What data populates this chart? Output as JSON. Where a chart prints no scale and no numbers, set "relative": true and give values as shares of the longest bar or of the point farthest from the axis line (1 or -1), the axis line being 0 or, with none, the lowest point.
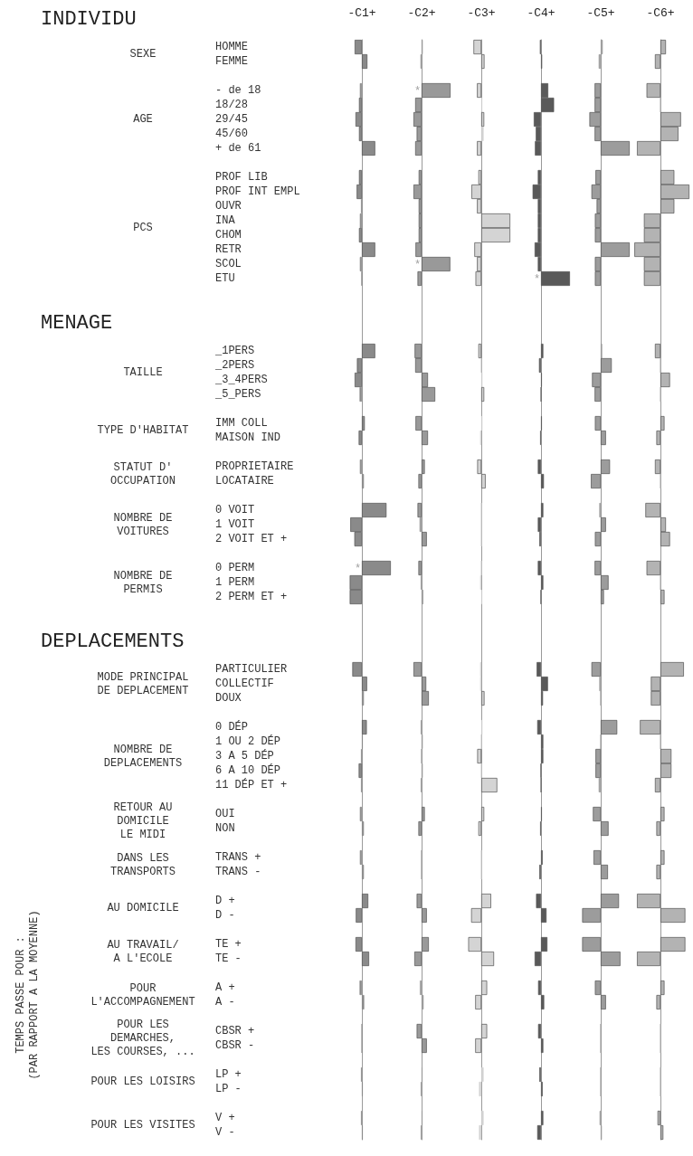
{
  "chart_data": [
    {
      "type": "bar",
      "orientation": "horizontal",
      "relative": true,
      "title": "-C1+",
      "color": "#8a8a8a",
      "tick_labels": "y",
      "annotations": [
        "INDIVIDU",
        "SEXE",
        "AGE",
        "PCS",
        "MENAGE",
        "TAILLE",
        "TYPE D'HABITAT",
        "STATUT D'\nOCCUPATION",
        "NOMBRE DE\nVOITURES",
        "NOMBRE DE\nPERMIS",
        "DEPLACEMENTS",
        "MODE PRINCIPAL\nDE DEPLACEMENT",
        "NOMBRE DE\nDEPLACEMENTS",
        "RETOUR AU\nDOMICILE\nLE MIDI",
        "DANS LES\nTRANSPORTS",
        "AU DOMICILE",
        "AU TRAVAIL/\nA L'ECOLE",
        "POUR\nL'ACCOMPAGNEMENT",
        "POUR LES\nDEMARCHES,\nLES COURSES, ...",
        "POUR LES LOISIRS",
        "POUR LES VISITES",
        "TEMPS PASSE POUR :\n(PAR RAPPORT A LA MOYENNE)",
        {
          "text": "*",
          "y": "0 PERM"
        }
      ],
      "categories": [
        "HOMME",
        "FEMME",
        null,
        "- de 18",
        "18/28",
        "29/45",
        "45/60",
        "+ de 61",
        null,
        "PROF LIB",
        "PROF INT EMPL",
        "OUVR",
        "INA",
        "CHOM",
        "RETR",
        "SCOL",
        "ETU",
        null,
        null,
        null,
        null,
        "_1PERS",
        "_2PERS",
        "_3_4PERS",
        "_5_PERS",
        null,
        "IMM COLL",
        "MAISON IND",
        null,
        "PROPRIETAIRE",
        "LOCATAIRE",
        null,
        "0 VOIT",
        "1 VOIT",
        "2 VOIT ET +",
        null,
        "0 PERM",
        "1 PERM",
        "2 PERM ET +",
        null,
        null,
        null,
        null,
        "PARTICULIER",
        "COLLECTIF",
        "DOUX",
        null,
        "0 DÉP",
        "1 OU 2 DÉP",
        "3 A 5 DÉP",
        "6 A 10 DÉP",
        "11 DÉP ET +",
        null,
        "OUI",
        "NON",
        null,
        "TRANS +",
        "TRANS -",
        null,
        "D +",
        "D -",
        null,
        "TE +",
        "TE -",
        null,
        "A +",
        "A -",
        null,
        "CBSR +",
        "CBSR -",
        null,
        "LP +",
        "LP -",
        null,
        "V +",
        "V -"
      ],
      "values": [
        -0.25,
        0.19,
        null,
        -0.07,
        -0.1,
        -0.22,
        -0.1,
        0.46,
        null,
        -0.1,
        -0.18,
        -0.03,
        -0.07,
        -0.1,
        0.46,
        -0.07,
        -0.01,
        null,
        null,
        null,
        null,
        0.46,
        -0.17,
        -0.25,
        -0.08,
        null,
        0.1,
        -0.11,
        null,
        -0.07,
        0.07,
        null,
        0.85,
        -0.4,
        -0.26,
        null,
        1,
        -0.42,
        -0.42,
        null,
        null,
        null,
        null,
        -0.33,
        0.18,
        0.07,
        null,
        0.17,
        0.03,
        -0.03,
        -0.11,
        -0.03,
        null,
        -0.07,
        0.07,
        null,
        -0.07,
        0.07,
        null,
        0.22,
        -0.21,
        null,
        -0.22,
        0.25,
        null,
        -0.08,
        0.08,
        null,
        0,
        0,
        null,
        -0.03,
        0.03,
        null,
        -0.03,
        0.03
      ]
    },
    {
      "type": "bar",
      "orientation": "horizontal",
      "relative": true,
      "title": "-C2+",
      "color": "#999999",
      "tick_labels": false,
      "annotations": [
        {
          "text": "*",
          "y": "- de 18"
        },
        {
          "text": "*",
          "y": "SCOL"
        }
      ],
      "categories": [
        "HOMME",
        "FEMME",
        null,
        "- de 18",
        "18/28",
        "29/45",
        "45/60",
        "+ de 61",
        null,
        "PROF LIB",
        "PROF INT EMPL",
        "OUVR",
        "INA",
        "CHOM",
        "RETR",
        "SCOL",
        "ETU",
        null,
        null,
        null,
        null,
        "_1PERS",
        "_2PERS",
        "_3_4PERS",
        "_5_PERS",
        null,
        "IMM COLL",
        "MAISON IND",
        null,
        "PROPRIETAIRE",
        "LOCATAIRE",
        null,
        "0 VOIT",
        "1 VOIT",
        "2 VOIT ET +",
        null,
        "0 PERM",
        "1 PERM",
        "2 PERM ET +",
        null,
        null,
        null,
        null,
        "PARTICULIER",
        "COLLECTIF",
        "DOUX",
        null,
        "0 DÉP",
        "1 OU 2 DÉP",
        "3 A 5 DÉP",
        "6 A 10 DÉP",
        "11 DÉP ET +",
        null,
        "OUI",
        "NON",
        null,
        "TRANS +",
        "TRANS -",
        null,
        "D +",
        "D -",
        null,
        "TE +",
        "TE -",
        null,
        "A +",
        "A -",
        null,
        "CBSR +",
        "CBSR -",
        null,
        "LP +",
        "LP -",
        null,
        "V +",
        "V -"
      ],
      "values": [
        0.04,
        -0.04,
        null,
        1,
        -0.22,
        -0.28,
        -0.17,
        -0.22,
        null,
        -0.1,
        -0.28,
        -0.1,
        -0.1,
        -0.1,
        -0.21,
        0.99,
        -0.14,
        null,
        null,
        null,
        null,
        -0.24,
        -0.22,
        0.22,
        0.47,
        null,
        -0.21,
        0.22,
        null,
        0.11,
        -0.11,
        null,
        -0.14,
        -0.07,
        0.18,
        null,
        -0.11,
        -0.03,
        0.06,
        null,
        null,
        null,
        null,
        -0.28,
        0.16,
        0.25,
        null,
        -0.03,
        0.04,
        0,
        0.04,
        -0.03,
        null,
        0.11,
        -0.11,
        null,
        0,
        0,
        null,
        -0.17,
        0.18,
        null,
        0.25,
        -0.25,
        null,
        -0.06,
        0.07,
        null,
        -0.17,
        0.18,
        null,
        0.03,
        -0.03,
        null,
        0.03,
        -0.03
      ]
    },
    {
      "type": "bar",
      "orientation": "horizontal",
      "relative": true,
      "title": "-C3+",
      "color": "#d4d4d4",
      "tick_labels": false,
      "categories": [
        "HOMME",
        "FEMME",
        null,
        "- de 18",
        "18/28",
        "29/45",
        "45/60",
        "+ de 61",
        null,
        "PROF LIB",
        "PROF INT EMPL",
        "OUVR",
        "INA",
        "CHOM",
        "RETR",
        "SCOL",
        "ETU",
        null,
        null,
        null,
        null,
        "_1PERS",
        "_2PERS",
        "_3_4PERS",
        "_5_PERS",
        null,
        "IMM COLL",
        "MAISON IND",
        null,
        "PROPRIETAIRE",
        "LOCATAIRE",
        null,
        "0 VOIT",
        "1 VOIT",
        "2 VOIT ET +",
        null,
        "0 PERM",
        "1 PERM",
        "2 PERM ET +",
        null,
        null,
        null,
        null,
        "PARTICULIER",
        "COLLECTIF",
        "DOUX",
        null,
        "0 DÉP",
        "1 OU 2 DÉP",
        "3 A 5 DÉP",
        "6 A 10 DÉP",
        "11 DÉP ET +",
        null,
        "OUI",
        "NON",
        null,
        "TRANS +",
        "TRANS -",
        null,
        "D +",
        "D -",
        null,
        "TE +",
        "TE -",
        null,
        "A +",
        "A -",
        null,
        "CBSR +",
        "CBSR -",
        null,
        "LP +",
        "LP -",
        null,
        "V +",
        "V -"
      ],
      "values": [
        -0.27,
        0.11,
        null,
        -0.15,
        0.03,
        0.1,
        0.08,
        -0.15,
        null,
        -0.1,
        -0.34,
        -0.15,
        1,
        1,
        -0.24,
        -0.15,
        -0.2,
        null,
        null,
        null,
        null,
        -0.1,
        -0.01,
        0.04,
        0.1,
        null,
        0.04,
        -0.04,
        null,
        -0.14,
        0.15,
        null,
        0,
        0,
        0,
        null,
        0,
        -0.04,
        0.03,
        null,
        null,
        null,
        null,
        -0.04,
        -0.04,
        0.11,
        null,
        0.04,
        0,
        -0.14,
        0,
        0.55,
        null,
        0.1,
        -0.1,
        null,
        0,
        0,
        null,
        0.34,
        -0.35,
        null,
        -0.45,
        0.44,
        null,
        0.2,
        -0.21,
        null,
        0.2,
        -0.21,
        null,
        0.08,
        -0.08,
        null,
        0.08,
        -0.08
      ]
    },
    {
      "type": "bar",
      "orientation": "horizontal",
      "relative": true,
      "title": "-C4+",
      "color": "#595959",
      "tick_labels": false,
      "annotations": [
        {
          "text": "*",
          "y": "ETU"
        }
      ],
      "categories": [
        "HOMME",
        "FEMME",
        null,
        "- de 18",
        "18/28",
        "29/45",
        "45/60",
        "+ de 61",
        null,
        "PROF LIB",
        "PROF INT EMPL",
        "OUVR",
        "INA",
        "CHOM",
        "RETR",
        "SCOL",
        "ETU",
        null,
        null,
        null,
        null,
        "_1PERS",
        "_2PERS",
        "_3_4PERS",
        "_5_PERS",
        null,
        "IMM COLL",
        "MAISON IND",
        null,
        "PROPRIETAIRE",
        "LOCATAIRE",
        null,
        "0 VOIT",
        "1 VOIT",
        "2 VOIT ET +",
        null,
        "0 PERM",
        "1 PERM",
        "2 PERM ET +",
        null,
        null,
        null,
        null,
        "PARTICULIER",
        "COLLECTIF",
        "DOUX",
        null,
        "0 DÉP",
        "1 OU 2 DÉP",
        "3 A 5 DÉP",
        "6 A 10 DÉP",
        "11 DÉP ET +",
        null,
        "OUI",
        "NON",
        null,
        "TRANS +",
        "TRANS -",
        null,
        "D +",
        "D -",
        null,
        "TE +",
        "TE -",
        null,
        "A +",
        "A -",
        null,
        "CBSR +",
        "CBSR -",
        null,
        "LP +",
        "LP -",
        null,
        "V +",
        "V -"
      ],
      "values": [
        -0.04,
        0.04,
        null,
        0.25,
        0.45,
        -0.25,
        -0.18,
        -0.21,
        null,
        -0.11,
        -0.29,
        -0.11,
        -0.11,
        -0.11,
        -0.22,
        -0.11,
        1,
        null,
        null,
        null,
        null,
        0.08,
        -0.07,
        0.03,
        0,
        null,
        0.03,
        -0.03,
        null,
        -0.11,
        0.1,
        null,
        0.08,
        -0.11,
        -0.06,
        null,
        -0.11,
        0.08,
        -0.01,
        null,
        null,
        null,
        null,
        -0.15,
        0.24,
        0.07,
        null,
        -0.13,
        0.08,
        0.08,
        -0.01,
        0,
        null,
        0.03,
        -0.03,
        null,
        0.06,
        -0.06,
        null,
        -0.17,
        0.19,
        null,
        0.22,
        -0.22,
        null,
        -0.1,
        0.11,
        null,
        -0.1,
        0.08,
        null,
        -0.06,
        0.06,
        null,
        0.08,
        -0.13
      ]
    },
    {
      "type": "bar",
      "orientation": "horizontal",
      "relative": true,
      "title": "-C5+",
      "color": "#9c9c9c",
      "tick_labels": false,
      "categories": [
        "HOMME",
        "FEMME",
        null,
        "- de 18",
        "18/28",
        "29/45",
        "45/60",
        "+ de 61",
        null,
        "PROF LIB",
        "PROF INT EMPL",
        "OUVR",
        "INA",
        "CHOM",
        "RETR",
        "SCOL",
        "ETU",
        null,
        null,
        null,
        null,
        "_1PERS",
        "_2PERS",
        "_3_4PERS",
        "_5_PERS",
        null,
        "IMM COLL",
        "MAISON IND",
        null,
        "PROPRIETAIRE",
        "LOCATAIRE",
        null,
        "0 VOIT",
        "1 VOIT",
        "2 VOIT ET +",
        null,
        "0 PERM",
        "1 PERM",
        "2 PERM ET +",
        null,
        null,
        null,
        null,
        "PARTICULIER",
        "COLLECTIF",
        "DOUX",
        null,
        "0 DÉP",
        "1 OU 2 DÉP",
        "3 A 5 DÉP",
        "6 A 10 DÉP",
        "11 DÉP ET +",
        null,
        "OUI",
        "NON",
        null,
        "TRANS +",
        "TRANS -",
        null,
        "D +",
        "D -",
        null,
        "TE +",
        "TE -",
        null,
        "A +",
        "A -",
        null,
        "CBSR +",
        "CBSR -",
        null,
        "LP +",
        "LP -",
        null,
        "V +",
        "V -"
      ],
      "values": [
        0.07,
        -0.07,
        null,
        -0.21,
        -0.21,
        -0.39,
        -0.21,
        1,
        null,
        -0.18,
        -0.32,
        -0.14,
        -0.2,
        -0.2,
        1,
        -0.2,
        -0.2,
        null,
        null,
        null,
        null,
        0.05,
        0.38,
        -0.3,
        -0.21,
        null,
        -0.2,
        0.18,
        null,
        0.32,
        -0.34,
        null,
        -0.05,
        0.18,
        -0.2,
        null,
        -0.21,
        0.27,
        0.11,
        null,
        null,
        null,
        null,
        -0.32,
        -0.05,
        0,
        null,
        0.57,
        0,
        -0.18,
        -0.18,
        -0.07,
        null,
        -0.27,
        0.27,
        null,
        -0.25,
        0.25,
        null,
        0.63,
        -0.64,
        null,
        -0.64,
        0.68,
        null,
        -0.2,
        0.18,
        null,
        0,
        0,
        null,
        0,
        0,
        null,
        -0.04,
        0.04
      ]
    },
    {
      "type": "bar",
      "orientation": "horizontal",
      "relative": true,
      "title": "-C6+",
      "color": "#b3b3b3",
      "tick_labels": false,
      "categories": [
        "HOMME",
        "FEMME",
        null,
        "- de 18",
        "18/28",
        "29/45",
        "45/60",
        "+ de 61",
        null,
        "PROF LIB",
        "PROF INT EMPL",
        "OUVR",
        "INA",
        "CHOM",
        "RETR",
        "SCOL",
        "ETU",
        null,
        null,
        null,
        null,
        "_1PERS",
        "_2PERS",
        "_3_4PERS",
        "_5_PERS",
        null,
        "IMM COLL",
        "MAISON IND",
        null,
        "PROPRIETAIRE",
        "LOCATAIRE",
        null,
        "0 VOIT",
        "1 VOIT",
        "2 VOIT ET +",
        null,
        "0 PERM",
        "1 PERM",
        "2 PERM ET +",
        null,
        null,
        null,
        null,
        "PARTICULIER",
        "COLLECTIF",
        "DOUX",
        null,
        "0 DÉP",
        "1 OU 2 DÉP",
        "3 A 5 DÉP",
        "6 A 10 DÉP",
        "11 DÉP ET +",
        null,
        "OUI",
        "NON",
        null,
        "TRANS +",
        "TRANS -",
        null,
        "D +",
        "D -",
        null,
        "TE +",
        "TE -",
        null,
        "A +",
        "A -",
        null,
        "CBSR +",
        "CBSR -",
        null,
        "LP +",
        "LP -",
        null,
        "V +",
        "V -"
      ],
      "values": [
        0.19,
        -0.19,
        null,
        -0.48,
        0,
        0.71,
        0.62,
        -0.81,
        null,
        0.48,
        1,
        0.48,
        -0.57,
        -0.57,
        -0.9,
        -0.57,
        -0.57,
        null,
        null,
        null,
        null,
        -0.19,
        0,
        0.33,
        0,
        null,
        0.14,
        -0.14,
        null,
        -0.19,
        0,
        null,
        -0.52,
        0.19,
        0.33,
        null,
        -0.48,
        0,
        0.14,
        null,
        null,
        null,
        null,
        0.81,
        -0.33,
        -0.33,
        null,
        -0.71,
        0,
        0.38,
        0.38,
        -0.19,
        null,
        0.14,
        -0.14,
        null,
        0.14,
        -0.14,
        null,
        -0.81,
        0.86,
        null,
        0.86,
        -0.81,
        null,
        0.14,
        -0.14,
        null,
        0,
        0,
        null,
        0,
        0,
        null,
        -0.1,
        0.1
      ]
    }
  ]
}
